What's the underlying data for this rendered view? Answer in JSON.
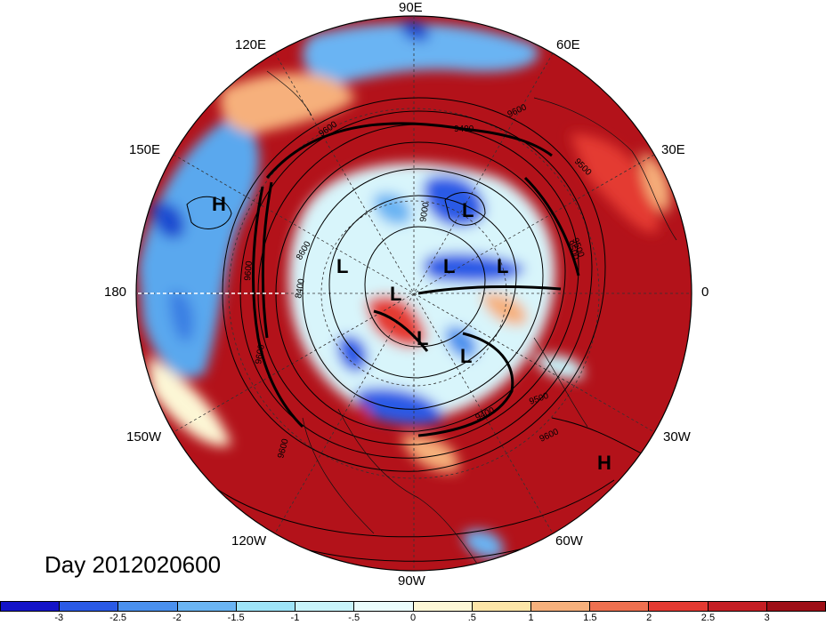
{
  "map": {
    "projection": "north-polar-stereographic",
    "day_label": "Day 2012020600",
    "longitude_labels": {
      "lon_0": "0",
      "lon_30E": "30E",
      "lon_60E": "60E",
      "lon_90E": "90E",
      "lon_120E": "120E",
      "lon_150E": "150E",
      "lon_180": "180",
      "lon_150W": "150W",
      "lon_120W": "120W",
      "lon_90W": "90W",
      "lon_60W": "60W",
      "lon_30W": "30W"
    },
    "pressure_systems": [
      {
        "type": "H",
        "label": "H"
      },
      {
        "type": "H",
        "label": "H"
      },
      {
        "type": "L",
        "label": "L"
      },
      {
        "type": "L",
        "label": "L"
      },
      {
        "type": "L",
        "label": "L"
      },
      {
        "type": "L",
        "label": "L"
      },
      {
        "type": "L",
        "label": "L"
      },
      {
        "type": "L",
        "label": "L"
      },
      {
        "type": "L",
        "label": "L"
      }
    ],
    "contour_labels": [
      "9600",
      "9500",
      "9400",
      "9600",
      "9500",
      "9600",
      "9000",
      "8400",
      "8600",
      "9600",
      "9500",
      "9400",
      "9600",
      "9500",
      "9600"
    ],
    "colors": {
      "ocean_red": "#a50f15",
      "warm": "#e03530",
      "cold": "#2155d6"
    }
  },
  "colorbar": {
    "colors": [
      "#1414c8",
      "#2a5ae6",
      "#4a90ee",
      "#6ab4f3",
      "#9ee4f8",
      "#c8f4fb",
      "#eafcfc",
      "#fdf7d6",
      "#fce5a8",
      "#f6b07c",
      "#ee7050",
      "#e43a32",
      "#c41e24",
      "#9e0e16"
    ],
    "tick_labels": [
      "-3",
      "-2.5",
      "-2",
      "-1.5",
      "-1",
      "-.5",
      "0",
      ".5",
      "1",
      "1.5",
      "2",
      "2.5",
      "3"
    ]
  }
}
